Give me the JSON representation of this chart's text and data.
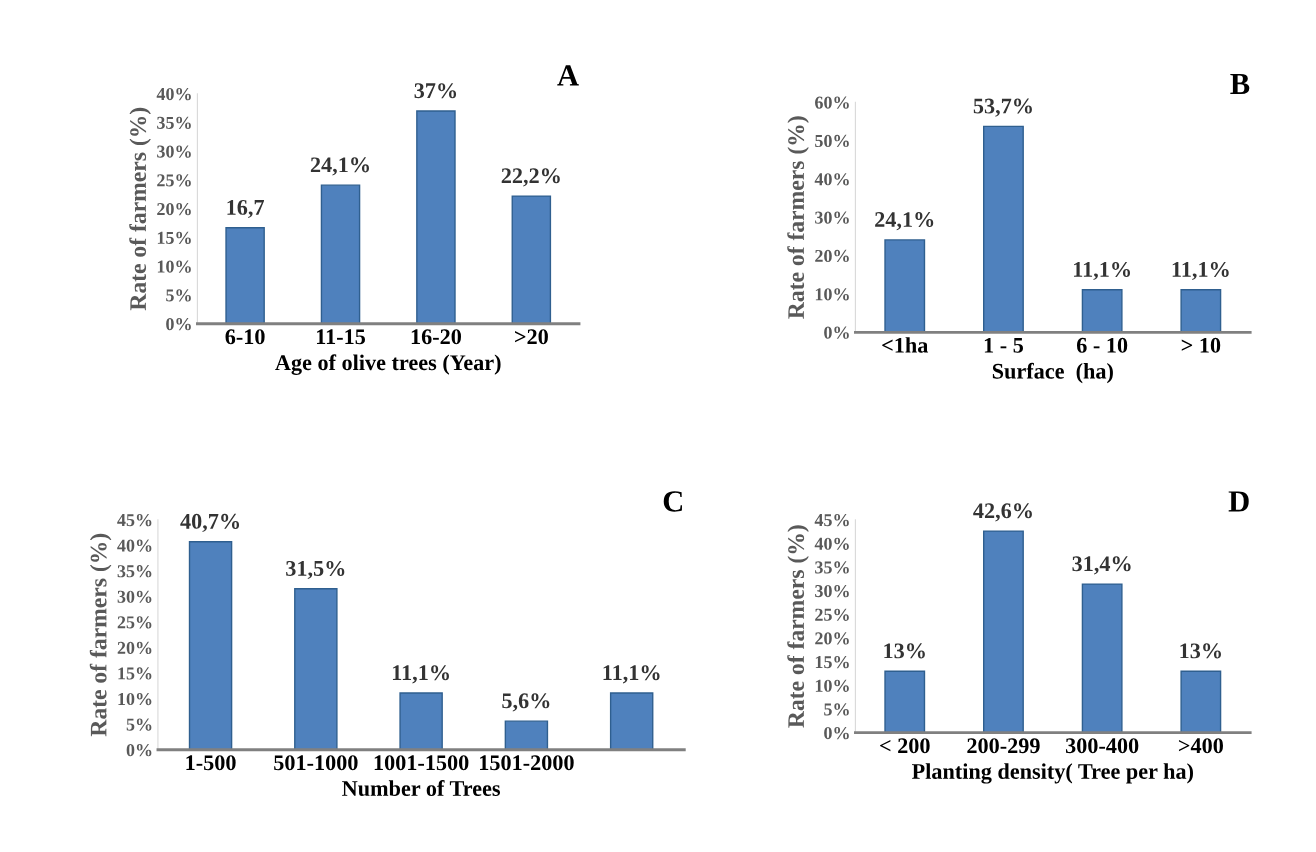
{
  "chart_data": [
    {
      "type": "bar",
      "title": "A",
      "xlabel": "Age of olive trees (Year)",
      "ylabel": "Rate of farmers (%)",
      "categories": [
        "6-10",
        "11-15",
        "16-20",
        ">20"
      ],
      "values": [
        16.7,
        24.1,
        37,
        22.2
      ],
      "value_labels": [
        "16,7",
        "24,1%",
        "37%",
        "22,2%"
      ],
      "color": "#4f81bd",
      "ylim": [
        0,
        40
      ],
      "yticks": [
        {
          "value": 0,
          "label": "0%"
        },
        {
          "value": 5,
          "label": "5%"
        },
        {
          "value": 10,
          "label": "10%"
        },
        {
          "value": 15,
          "label": "15%"
        },
        {
          "value": 20,
          "label": "20%"
        },
        {
          "value": 25,
          "label": "25%"
        },
        {
          "value": 30,
          "label": "30%"
        },
        {
          "value": 35,
          "label": "35%"
        },
        {
          "value": 40,
          "label": "40%"
        }
      ],
      "grid": false,
      "legend": false
    },
    {
      "type": "bar",
      "title": "B",
      "xlabel": "Surface  (ha)",
      "ylabel": "Rate of farmers (%)",
      "categories": [
        "<1ha",
        "1 - 5",
        "6 - 10",
        "> 10"
      ],
      "values": [
        24.1,
        53.7,
        11.1,
        11.1
      ],
      "value_labels": [
        "24,1%",
        "53,7%",
        "11,1%",
        "11,1%"
      ],
      "color": "#4f81bd",
      "ylim": [
        0,
        60
      ],
      "yticks": [
        {
          "value": 0,
          "label": "0%"
        },
        {
          "value": 10,
          "label": "10%"
        },
        {
          "value": 20,
          "label": "20%"
        },
        {
          "value": 30,
          "label": "30%"
        },
        {
          "value": 40,
          "label": "40%"
        },
        {
          "value": 50,
          "label": "50%"
        },
        {
          "value": 60,
          "label": "60%"
        }
      ],
      "grid": false,
      "legend": false
    },
    {
      "type": "bar",
      "title": "C",
      "xlabel": "Number of Trees",
      "ylabel": "Rate of farmers (%)",
      "categories": [
        "1-500",
        "501-1000",
        "1001-1500",
        "1501-2000",
        null
      ],
      "values": [
        40.7,
        31.5,
        11.1,
        5.6,
        11.1
      ],
      "value_labels": [
        "40,7%",
        "31,5%",
        "11,1%",
        "5,6%",
        "11,1%"
      ],
      "color": "#4f81bd",
      "ylim": [
        0,
        45
      ],
      "yticks": [
        {
          "value": 0,
          "label": "0%"
        },
        {
          "value": 5,
          "label": "5%"
        },
        {
          "value": 10,
          "label": "10%"
        },
        {
          "value": 15,
          "label": "15%"
        },
        {
          "value": 20,
          "label": "20%"
        },
        {
          "value": 25,
          "label": "25%"
        },
        {
          "value": 30,
          "label": "30%"
        },
        {
          "value": 35,
          "label": "35%"
        },
        {
          "value": 40,
          "label": "40%"
        },
        {
          "value": 45,
          "label": "45%"
        }
      ],
      "grid": false,
      "legend": false
    },
    {
      "type": "bar",
      "title": "D",
      "xlabel": "Planting density( Tree per ha)",
      "ylabel": "Rate of farmers (%)",
      "categories": [
        "< 200",
        "200-299",
        "300-400",
        ">400"
      ],
      "values": [
        13,
        42.6,
        31.4,
        13
      ],
      "value_labels": [
        "13%",
        "42,6%",
        "31,4%",
        "13%"
      ],
      "color": "#4f81bd",
      "ylim": [
        0,
        45
      ],
      "yticks": [
        {
          "value": 0,
          "label": "0%"
        },
        {
          "value": 5,
          "label": "5%"
        },
        {
          "value": 10,
          "label": "10%"
        },
        {
          "value": 15,
          "label": "15%"
        },
        {
          "value": 20,
          "label": "20%"
        },
        {
          "value": 25,
          "label": "25%"
        },
        {
          "value": 30,
          "label": "30%"
        },
        {
          "value": 35,
          "label": "35%"
        },
        {
          "value": 40,
          "label": "40%"
        },
        {
          "value": 45,
          "label": "45%"
        }
      ],
      "grid": false,
      "legend": false
    }
  ]
}
